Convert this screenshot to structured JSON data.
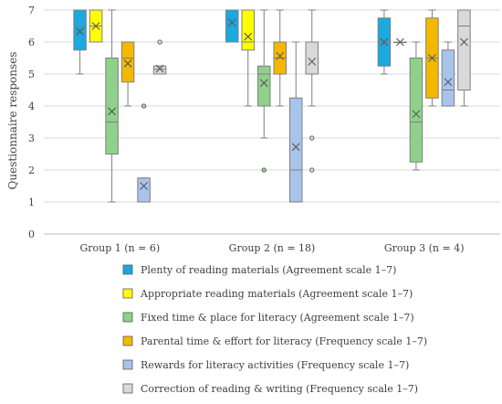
{
  "chart_data": {
    "type": "boxplot",
    "ylabel": "Questionnaire responses",
    "ylim": [
      0,
      7
    ],
    "yticks": [
      "0",
      "1",
      "2",
      "3",
      "4",
      "5",
      "6",
      "7"
    ],
    "grid": "horizontal",
    "legend": "bottom",
    "categories": [
      "Group 1 (n = 6)",
      "Group 2 (n = 18)",
      "Group 3 (n = 4)"
    ],
    "series": [
      {
        "name": "Plenty of reading materials (Agreement scale 1–7)",
        "color": "#1BA9E0",
        "boxes": [
          {
            "whisker_low": 5,
            "q1": 5.75,
            "median": 6.5,
            "q3": 7,
            "whisker_high": 7,
            "mean": 6.33,
            "outliers": []
          },
          {
            "whisker_low": 6,
            "q1": 6,
            "median": 7,
            "q3": 7,
            "whisker_high": 7,
            "mean": 6.61,
            "outliers": []
          },
          {
            "whisker_low": 5,
            "q1": 5.25,
            "median": 6,
            "q3": 6.75,
            "whisker_high": 7,
            "mean": 6,
            "outliers": []
          }
        ]
      },
      {
        "name": "Appropriate reading materials (Agreement scale 1–7)",
        "color": "#FFFF00",
        "boxes": [
          {
            "whisker_low": 6,
            "q1": 6,
            "median": 6.5,
            "q3": 7,
            "whisker_high": 7,
            "mean": 6.5,
            "outliers": []
          },
          {
            "whisker_low": 4,
            "q1": 5.75,
            "median": 6,
            "q3": 7,
            "whisker_high": 7,
            "mean": 6.17,
            "outliers": []
          },
          {
            "whisker_low": 6,
            "q1": 6,
            "median": 6,
            "q3": 6,
            "whisker_high": 6,
            "mean": 6,
            "outliers": []
          }
        ]
      },
      {
        "name": "Fixed time & place for literacy (Agreement scale 1–7)",
        "color": "#8FD18A",
        "boxes": [
          {
            "whisker_low": 1,
            "q1": 2.5,
            "median": 3.5,
            "q3": 5.5,
            "whisker_high": 7,
            "mean": 3.83,
            "outliers": []
          },
          {
            "whisker_low": 3,
            "q1": 4,
            "median": 5,
            "q3": 5.25,
            "whisker_high": 7,
            "mean": 4.72,
            "outliers": [
              2
            ]
          },
          {
            "whisker_low": 2,
            "q1": 2.25,
            "median": 3.5,
            "q3": 5.5,
            "whisker_high": 6,
            "mean": 3.75,
            "outliers": []
          }
        ]
      },
      {
        "name": "Parental time & effort for literacy (Frequency scale 1–7)",
        "color": "#F5B800",
        "boxes": [
          {
            "whisker_low": 4,
            "q1": 4.75,
            "median": 5.5,
            "q3": 6,
            "whisker_high": 6,
            "mean": 5.33,
            "outliers": []
          },
          {
            "whisker_low": 4,
            "q1": 5,
            "median": 5.5,
            "q3": 6,
            "whisker_high": 7,
            "mean": 5.56,
            "outliers": []
          },
          {
            "whisker_low": 4,
            "q1": 4.25,
            "median": 5.5,
            "q3": 6.75,
            "whisker_high": 7,
            "mean": 5.5,
            "outliers": []
          }
        ]
      },
      {
        "name": "Rewards for literacy activities (Frequency scale 1–7)",
        "color": "#A9C4EB",
        "boxes": [
          {
            "whisker_low": 1,
            "q1": 1,
            "median": 1,
            "q3": 1.75,
            "whisker_high": 1.75,
            "mean": 1.5,
            "outliers": [
              4
            ]
          },
          {
            "whisker_low": 1,
            "q1": 1,
            "median": 2,
            "q3": 4.25,
            "whisker_high": 6,
            "mean": 2.72,
            "outliers": []
          },
          {
            "whisker_low": 4,
            "q1": 4,
            "median": 4.5,
            "q3": 5.75,
            "whisker_high": 6,
            "mean": 4.75,
            "outliers": []
          }
        ]
      },
      {
        "name": "Correction of reading & writing (Frequency scale 1–7)",
        "color": "#D9D9D9",
        "boxes": [
          {
            "whisker_low": 5,
            "q1": 5,
            "median": 5.15,
            "q3": 5.25,
            "whisker_high": 5.25,
            "mean": 5.17,
            "outliers": [
              6
            ]
          },
          {
            "whisker_low": 4,
            "q1": 5,
            "median": 5,
            "q3": 6,
            "whisker_high": 7,
            "mean": 5.39,
            "outliers": [
              3,
              2
            ]
          },
          {
            "whisker_low": 4,
            "q1": 4.5,
            "median": 6.5,
            "q3": 7,
            "whisker_high": 7,
            "mean": 6,
            "outliers": []
          }
        ]
      }
    ]
  }
}
